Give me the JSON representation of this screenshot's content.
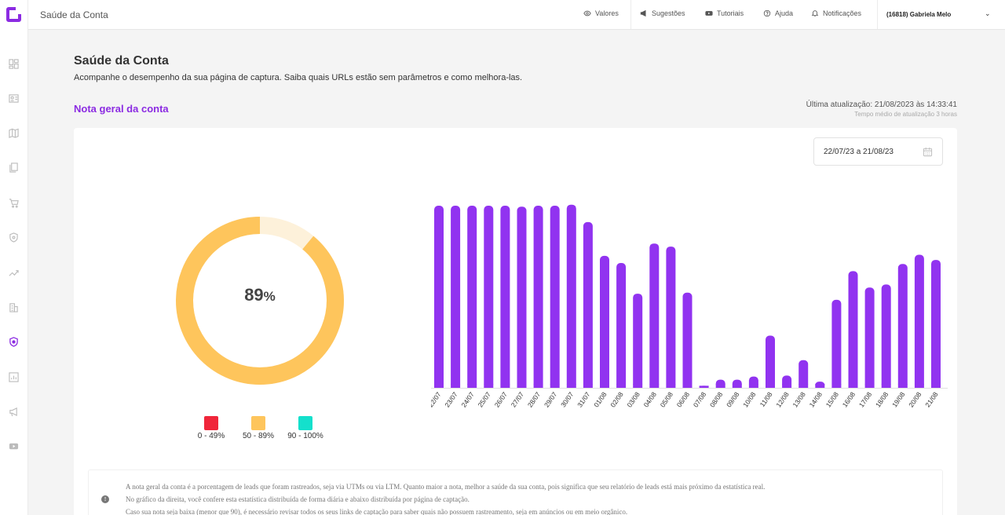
{
  "header": {
    "title": "Saúde da Conta",
    "nav": [
      {
        "label": "Valores",
        "icon": "eye-icon"
      },
      {
        "label": "Sugestões",
        "icon": "megaphone-icon"
      },
      {
        "label": "Tutoriais",
        "icon": "youtube-icon"
      },
      {
        "label": "Ajuda",
        "icon": "help-circle-icon"
      },
      {
        "label": "Notificações",
        "icon": "bell-icon"
      }
    ],
    "user": "(16818) Gabriela Melo"
  },
  "sidebar": {
    "icons": [
      "dashboard-icon",
      "id-card-icon",
      "map-icon",
      "pages-icon",
      "cart-icon",
      "shield-icon",
      "trend-icon",
      "building-icon",
      "shield-heart-icon",
      "report-icon",
      "megaphone-icon",
      "youtube-icon"
    ],
    "active_index": 8
  },
  "page": {
    "title": "Saúde da Conta",
    "subtitle": "Acompanhe o desempenho da sua página de captura. Saiba quais URLs estão sem parâmetros e como melhora-las.",
    "section_title": "Nota geral da conta",
    "last_update": "Última atualização: 21/08/2023 às 14:33:41",
    "avg_update": "Tempo médio de atualização 3 horas"
  },
  "card": {
    "date_range": "22/07/23 a 21/08/23",
    "score_value": "89",
    "score_unit": "%",
    "score": 89,
    "legend": [
      {
        "label": "0 - 49%",
        "color": "#f0263a"
      },
      {
        "label": "50 - 89%",
        "color": "#fec55c"
      },
      {
        "label": "90 - 100%",
        "color": "#14e0cc"
      }
    ],
    "info_lines": [
      "A nota geral da conta é a porcentagem de leads que foram rastreados, seja via UTMs ou via LTM. Quanto maior a nota, melhor a saúde da sua conta, pois significa que seu relatório de leads está mais próximo da estatística real.",
      "No gráfico da direita, você confere esta estatística distribuída de forma diária e abaixo distribuída por página de captação.",
      "Caso sua nota seja baixa (menor que 90), é necessário revisar todos os seus links de captação para saber quais não possuem rastreamento, seja em anúncios ou em meio orgânico."
    ]
  },
  "colors": {
    "accent": "#8b2be2",
    "bar": "#9133f0",
    "donut_fill": "#fec55c",
    "donut_track": "#fdf1da"
  },
  "chart_data": {
    "type": "bar",
    "title": "",
    "xlabel": "",
    "ylabel": "",
    "ylim": [
      0,
      100
    ],
    "categories": [
      "22/07",
      "23/07",
      "24/07",
      "25/07",
      "26/07",
      "27/07",
      "28/07",
      "29/07",
      "30/07",
      "31/07",
      "01/08",
      "02/08",
      "03/08",
      "04/08",
      "05/08",
      "06/08",
      "07/08",
      "08/08",
      "09/08",
      "10/08",
      "11/08",
      "12/08",
      "13/08",
      "14/08",
      "15/08",
      "16/08",
      "17/08",
      "18/08",
      "19/08",
      "20/08",
      "21/08"
    ],
    "values": [
      89,
      89,
      89,
      89,
      89,
      88.5,
      89,
      89,
      89.5,
      81,
      64.5,
      61,
      46,
      70.5,
      69,
      46.5,
      1,
      4,
      4,
      5.5,
      25.5,
      6,
      13.5,
      3,
      43,
      57,
      49,
      50.5,
      60.5,
      65,
      62.5
    ]
  }
}
